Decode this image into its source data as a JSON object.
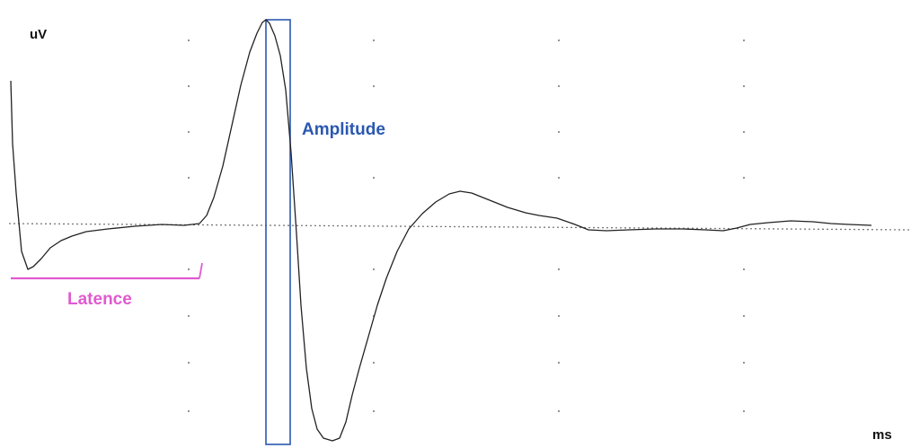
{
  "chart_data": {
    "type": "line",
    "xlabel": "ms",
    "ylabel": "uV",
    "grid": "dotted",
    "baseline": "dotted",
    "xlim": [
      0,
      1014
    ],
    "ylim": [
      -499,
      0
    ],
    "trace_color": "#222222",
    "series": [
      {
        "values": [
          [
            12,
            -90
          ],
          [
            14,
            -160
          ],
          [
            18,
            -215
          ],
          [
            24,
            -280
          ],
          [
            31,
            -300
          ],
          [
            37,
            -297
          ],
          [
            46,
            -288
          ],
          [
            56,
            -276
          ],
          [
            68,
            -268
          ],
          [
            80,
            -263
          ],
          [
            96,
            -258
          ],
          [
            120,
            -255
          ],
          [
            150,
            -252
          ],
          [
            180,
            -250
          ],
          [
            205,
            -251
          ],
          [
            222,
            -249
          ],
          [
            230,
            -240
          ],
          [
            238,
            -220
          ],
          [
            248,
            -185
          ],
          [
            258,
            -140
          ],
          [
            268,
            -95
          ],
          [
            278,
            -58
          ],
          [
            286,
            -37
          ],
          [
            292,
            -25
          ],
          [
            296,
            -22
          ],
          [
            300,
            -26
          ],
          [
            306,
            -40
          ],
          [
            312,
            -62
          ],
          [
            318,
            -100
          ],
          [
            324,
            -170
          ],
          [
            330,
            -260
          ],
          [
            335,
            -340
          ],
          [
            341,
            -410
          ],
          [
            347,
            -455
          ],
          [
            353,
            -478
          ],
          [
            360,
            -488
          ],
          [
            370,
            -491
          ],
          [
            378,
            -488
          ],
          [
            385,
            -470
          ],
          [
            392,
            -440
          ],
          [
            400,
            -410
          ],
          [
            410,
            -375
          ],
          [
            420,
            -340
          ],
          [
            430,
            -310
          ],
          [
            442,
            -280
          ],
          [
            455,
            -255
          ],
          [
            470,
            -238
          ],
          [
            485,
            -225
          ],
          [
            500,
            -216
          ],
          [
            512,
            -213
          ],
          [
            525,
            -215
          ],
          [
            545,
            -223
          ],
          [
            565,
            -231
          ],
          [
            585,
            -237
          ],
          [
            600,
            -240
          ],
          [
            620,
            -243
          ],
          [
            640,
            -250
          ],
          [
            655,
            -256
          ],
          [
            675,
            -257
          ],
          [
            700,
            -256
          ],
          [
            730,
            -255
          ],
          [
            760,
            -255
          ],
          [
            785,
            -256
          ],
          [
            805,
            -257
          ],
          [
            820,
            -254
          ],
          [
            835,
            -250
          ],
          [
            855,
            -248
          ],
          [
            880,
            -246
          ],
          [
            905,
            -247
          ],
          [
            925,
            -249
          ],
          [
            945,
            -250
          ],
          [
            970,
            -251
          ]
        ]
      }
    ],
    "annotations": [
      {
        "text": "Amplitude",
        "color": "#2a58b0",
        "peak": [
          296,
          -22
        ],
        "trough": [
          370,
          -491
        ]
      },
      {
        "text": "Latence",
        "color": "#e05ad0",
        "start": [
          12,
          -309
        ],
        "end": [
          222,
          -309
        ]
      }
    ]
  }
}
